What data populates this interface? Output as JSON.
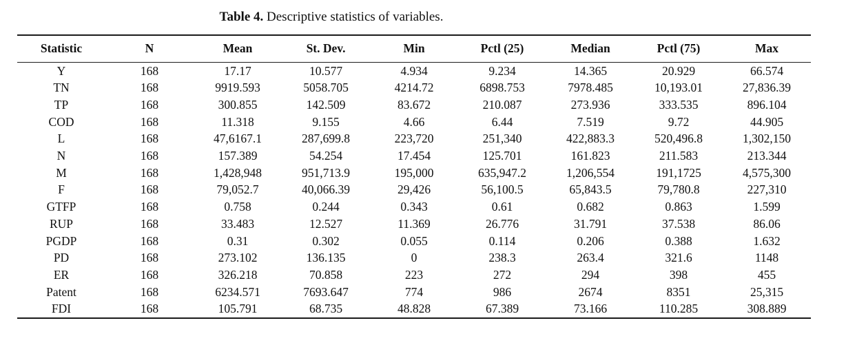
{
  "caption": {
    "label": "Table 4.",
    "text": " Descriptive statistics of variables."
  },
  "colors": {
    "background": "#ffffff",
    "text": "#111111",
    "rule": "#1a1a1a"
  },
  "table": {
    "columns": [
      "Statistic",
      "N",
      "Mean",
      "St. Dev.",
      "Min",
      "Pctl (25)",
      "Median",
      "Pctl (75)",
      "Max"
    ],
    "rows": [
      [
        "Y",
        "168",
        "17.17",
        "10.577",
        "4.934",
        "9.234",
        "14.365",
        "20.929",
        "66.574"
      ],
      [
        "TN",
        "168",
        "9919.593",
        "5058.705",
        "4214.72",
        "6898.753",
        "7978.485",
        "10,193.01",
        "27,836.39"
      ],
      [
        "TP",
        "168",
        "300.855",
        "142.509",
        "83.672",
        "210.087",
        "273.936",
        "333.535",
        "896.104"
      ],
      [
        "COD",
        "168",
        "11.318",
        "9.155",
        "4.66",
        "6.44",
        "7.519",
        "9.72",
        "44.905"
      ],
      [
        "L",
        "168",
        "47,6167.1",
        "287,699.8",
        "223,720",
        "251,340",
        "422,883.3",
        "520,496.8",
        "1,302,150"
      ],
      [
        "N",
        "168",
        "157.389",
        "54.254",
        "17.454",
        "125.701",
        "161.823",
        "211.583",
        "213.344"
      ],
      [
        "M",
        "168",
        "1,428,948",
        "951,713.9",
        "195,000",
        "635,947.2",
        "1,206,554",
        "191,1725",
        "4,575,300"
      ],
      [
        "F",
        "168",
        "79,052.7",
        "40,066.39",
        "29,426",
        "56,100.5",
        "65,843.5",
        "79,780.8",
        "227,310"
      ],
      [
        "GTFP",
        "168",
        "0.758",
        "0.244",
        "0.343",
        "0.61",
        "0.682",
        "0.863",
        "1.599"
      ],
      [
        "RUP",
        "168",
        "33.483",
        "12.527",
        "11.369",
        "26.776",
        "31.791",
        "37.538",
        "86.06"
      ],
      [
        "PGDP",
        "168",
        "0.31",
        "0.302",
        "0.055",
        "0.114",
        "0.206",
        "0.388",
        "1.632"
      ],
      [
        "PD",
        "168",
        "273.102",
        "136.135",
        "0",
        "238.3",
        "263.4",
        "321.6",
        "1148"
      ],
      [
        "ER",
        "168",
        "326.218",
        "70.858",
        "223",
        "272",
        "294",
        "398",
        "455"
      ],
      [
        "Patent",
        "168",
        "6234.571",
        "7693.647",
        "774",
        "986",
        "2674",
        "8351",
        "25,315"
      ],
      [
        "FDI",
        "168",
        "105.791",
        "68.735",
        "48.828",
        "67.389",
        "73.166",
        "110.285",
        "308.889"
      ]
    ]
  }
}
